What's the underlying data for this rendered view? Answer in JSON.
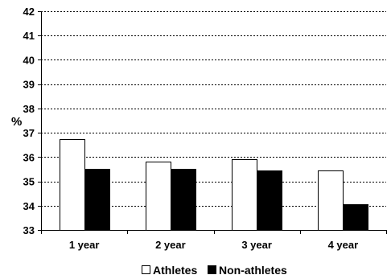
{
  "chart_data": {
    "type": "bar",
    "categories": [
      "1 year",
      "2 year",
      "3 year",
      "4 year"
    ],
    "series": [
      {
        "name": "Athletes",
        "values": [
          36.75,
          35.8,
          35.9,
          35.45
        ],
        "color": "#ffffff"
      },
      {
        "name": "Non-athletes",
        "values": [
          35.5,
          35.5,
          35.45,
          34.05
        ],
        "color": "#000000"
      }
    ],
    "ylabel": "%",
    "ylim": [
      33,
      42
    ],
    "yticks": [
      33,
      34,
      35,
      36,
      37,
      38,
      39,
      40,
      41,
      42
    ],
    "grid": true,
    "legend_position": "bottom"
  }
}
